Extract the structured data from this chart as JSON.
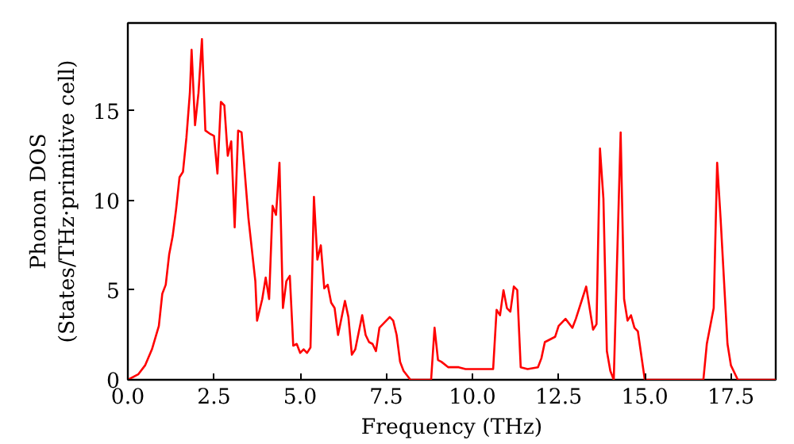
{
  "chart_data": {
    "type": "line",
    "xlabel": "Frequency (THz)",
    "ylabel": "Phonon DOS\n(States/THz·primitive cell)",
    "x": [
      0,
      0.3,
      0.5,
      0.7,
      0.9,
      1.0,
      1.1,
      1.2,
      1.3,
      1.4,
      1.5,
      1.6,
      1.7,
      1.8,
      1.85,
      1.95,
      2.05,
      2.15,
      2.25,
      2.4,
      2.5,
      2.6,
      2.7,
      2.8,
      2.9,
      3.0,
      3.1,
      3.2,
      3.3,
      3.5,
      3.7,
      3.75,
      3.9,
      4.0,
      4.1,
      4.2,
      4.3,
      4.4,
      4.5,
      4.6,
      4.7,
      4.8,
      4.9,
      5.0,
      5.1,
      5.2,
      5.3,
      5.4,
      5.5,
      5.6,
      5.7,
      5.8,
      5.9,
      6.0,
      6.1,
      6.3,
      6.4,
      6.5,
      6.6,
      6.8,
      6.9,
      7.0,
      7.1,
      7.2,
      7.3,
      7.5,
      7.6,
      7.7,
      7.8,
      7.9,
      8.0,
      8.2,
      8.8,
      8.9,
      9.0,
      9.1,
      9.3,
      9.6,
      9.8,
      10.3,
      10.6,
      10.7,
      10.8,
      10.9,
      11.0,
      11.1,
      11.2,
      11.3,
      11.4,
      11.6,
      11.9,
      12.0,
      12.1,
      12.4,
      12.5,
      12.7,
      12.9,
      13.0,
      13.2,
      13.3,
      13.5,
      13.6,
      13.7,
      13.8,
      13.9,
      14.0,
      14.1,
      14.3,
      14.4,
      14.5,
      14.6,
      14.7,
      14.8,
      15.0,
      16.7,
      16.8,
      17.0,
      17.1,
      17.2,
      17.4,
      17.5,
      17.7,
      18.8
    ],
    "series": [
      {
        "color": "#ff0000",
        "values": [
          0,
          0.3,
          0.8,
          1.7,
          3.0,
          4.8,
          5.3,
          7,
          8,
          9.5,
          11.3,
          11.6,
          13.5,
          16,
          18.4,
          14.2,
          16,
          19,
          13.9,
          13.7,
          13.6,
          11.5,
          15.5,
          15.3,
          12.5,
          13.3,
          8.5,
          13.9,
          13.8,
          9,
          5.5,
          3.3,
          4.5,
          5.7,
          4.5,
          9.7,
          9.2,
          12.1,
          4,
          5.5,
          5.8,
          1.9,
          2.0,
          1.5,
          1.7,
          1.5,
          1.8,
          10.2,
          6.7,
          7.5,
          5.1,
          5.3,
          4.3,
          4.0,
          2.5,
          4.4,
          3.5,
          1.4,
          1.7,
          3.6,
          2.5,
          2.1,
          2.0,
          1.6,
          2.9,
          3.3,
          3.5,
          3.3,
          2.5,
          1.0,
          0.5,
          0,
          0,
          2.9,
          1.1,
          1.0,
          0.7,
          0.7,
          0.6,
          0.6,
          0.6,
          3.9,
          3.6,
          5.0,
          4.0,
          3.8,
          5.2,
          5.0,
          0.7,
          0.6,
          0.7,
          1.2,
          2.1,
          2.4,
          3.0,
          3.4,
          2.9,
          3.4,
          4.6,
          5.2,
          2.8,
          3.1,
          12.9,
          10.1,
          1.6,
          0.5,
          0,
          13.8,
          4.5,
          3.3,
          3.6,
          2.9,
          2.7,
          0,
          0,
          2,
          4,
          12.1,
          9,
          2,
          0.8,
          0,
          0
        ]
      }
    ],
    "xlim": [
      0,
      18.8
    ],
    "ylim": [
      0,
      19.9
    ],
    "xticks": [
      {
        "value": 0,
        "label": "0.0"
      },
      {
        "value": 2.5,
        "label": "2.5"
      },
      {
        "value": 5,
        "label": "5.0"
      },
      {
        "value": 7.5,
        "label": "7.5"
      },
      {
        "value": 10,
        "label": "10.0"
      },
      {
        "value": 12.5,
        "label": "12.5"
      },
      {
        "value": 15,
        "label": "15.0"
      },
      {
        "value": 17.5,
        "label": "17.5"
      }
    ],
    "yticks": [
      0,
      5,
      10,
      15
    ],
    "grid": false
  }
}
